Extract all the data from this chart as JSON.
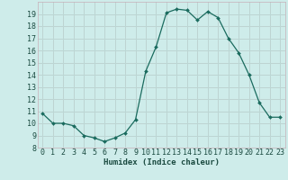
{
  "x": [
    0,
    1,
    2,
    3,
    4,
    5,
    6,
    7,
    8,
    9,
    10,
    11,
    12,
    13,
    14,
    15,
    16,
    17,
    18,
    19,
    20,
    21,
    22,
    23
  ],
  "y": [
    10.8,
    10.0,
    10.0,
    9.8,
    9.0,
    8.8,
    8.5,
    8.8,
    9.2,
    10.3,
    14.3,
    16.3,
    19.1,
    19.4,
    19.3,
    18.5,
    19.2,
    18.7,
    17.0,
    15.8,
    14.0,
    11.7,
    10.5,
    10.5
  ],
  "line_color": "#1a6b5e",
  "marker": "D",
  "marker_size": 2.0,
  "bg_color": "#ceecea",
  "grid_color_pink": "#c8b0b8",
  "grid_color_light": "#b8dcd8",
  "xlabel": "Humidex (Indice chaleur)",
  "xlim": [
    -0.5,
    23.5
  ],
  "ylim": [
    8,
    20
  ],
  "yticks": [
    8,
    9,
    10,
    11,
    12,
    13,
    14,
    15,
    16,
    17,
    18,
    19
  ],
  "xticks": [
    0,
    1,
    2,
    3,
    4,
    5,
    6,
    7,
    8,
    9,
    10,
    11,
    12,
    13,
    14,
    15,
    16,
    17,
    18,
    19,
    20,
    21,
    22,
    23
  ],
  "tick_color": "#1a4a40",
  "label_fontsize": 6.5,
  "tick_fontsize": 6.0,
  "linewidth": 0.9
}
